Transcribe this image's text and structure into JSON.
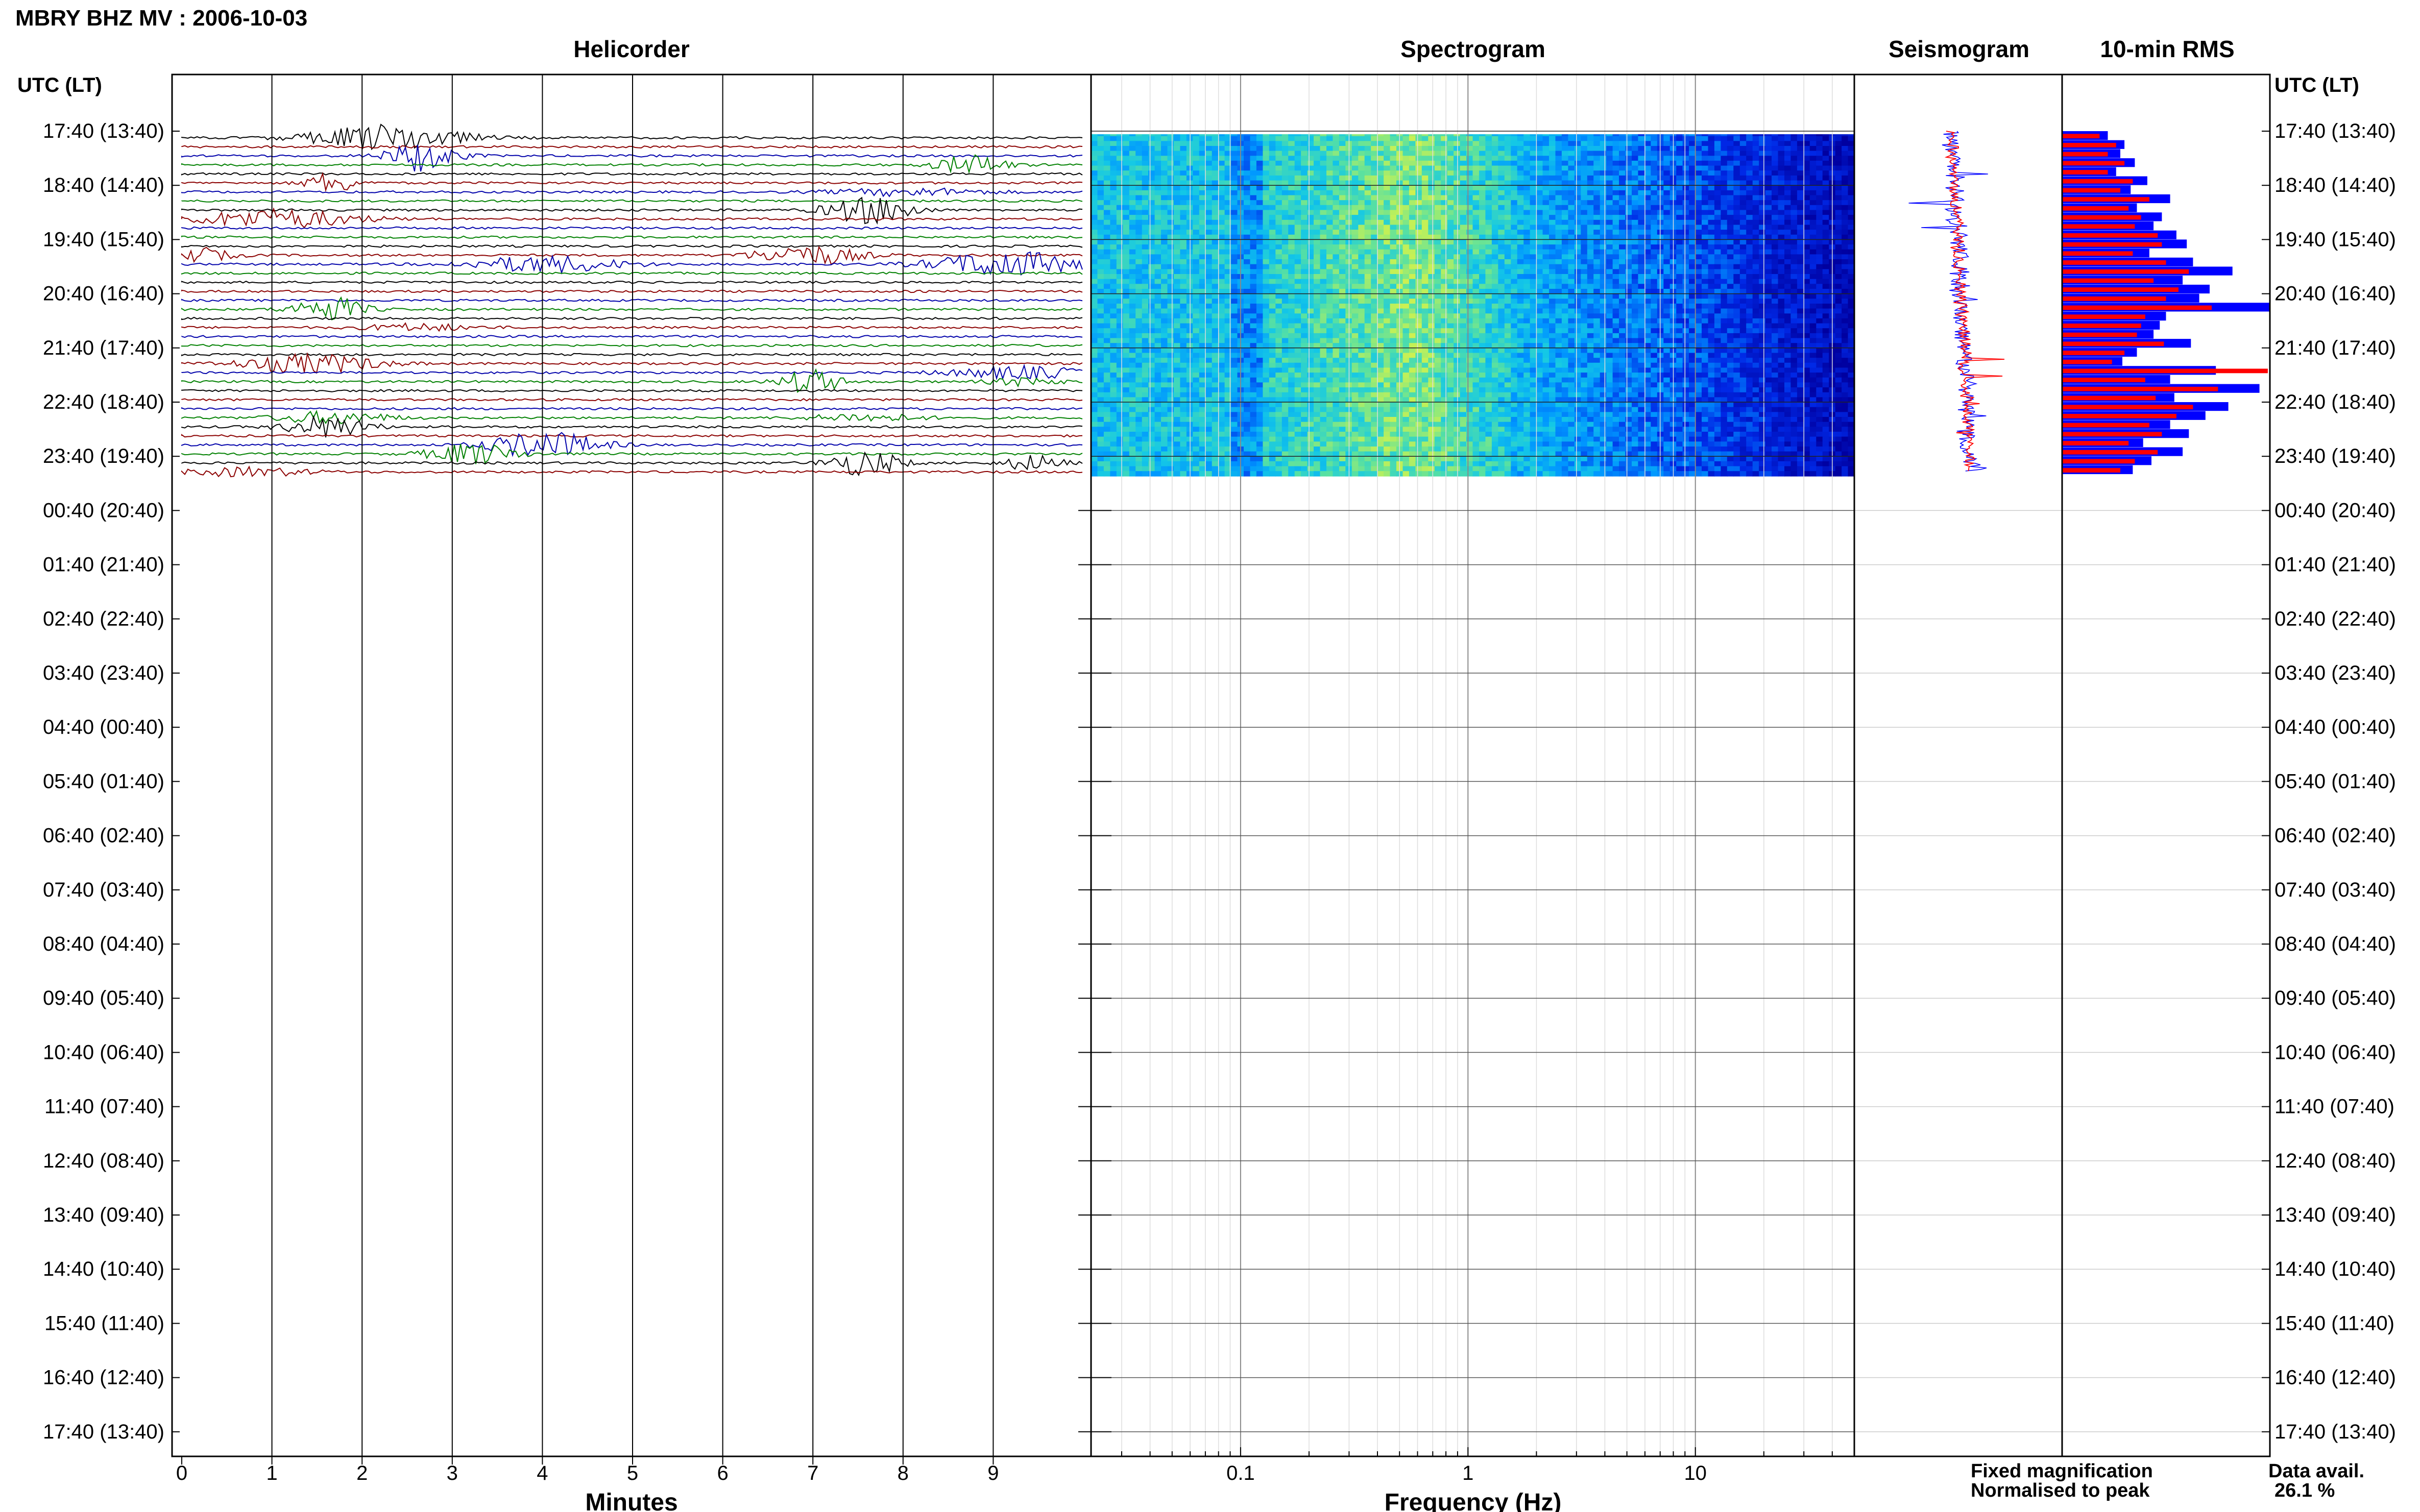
{
  "title": "MBRY BHZ MV : 2006-10-03",
  "panels": {
    "helicorder": "Helicorder",
    "spectrogram": "Spectrogram",
    "seismogram": "Seismogram",
    "rms": "10-min RMS"
  },
  "time_axis_header": "UTC (LT)",
  "time_labels": [
    "17:40 (13:40)",
    "18:40 (14:40)",
    "19:40 (15:40)",
    "20:40 (16:40)",
    "21:40 (17:40)",
    "22:40 (18:40)",
    "23:40 (19:40)",
    "00:40 (20:40)",
    "01:40 (21:40)",
    "02:40 (22:40)",
    "03:40 (23:40)",
    "04:40 (00:40)",
    "05:40 (01:40)",
    "06:40 (02:40)",
    "07:40 (03:40)",
    "08:40 (04:40)",
    "09:40 (05:40)",
    "10:40 (06:40)",
    "11:40 (07:40)",
    "12:40 (08:40)",
    "13:40 (09:40)",
    "14:40 (10:40)",
    "15:40 (11:40)",
    "16:40 (12:40)",
    "17:40 (13:40)"
  ],
  "minutes_ticks": [
    "0",
    "1",
    "2",
    "3",
    "4",
    "5",
    "6",
    "7",
    "8",
    "9"
  ],
  "minutes_label": "Minutes",
  "frequency_ticks": [
    "0.1",
    "1",
    "10"
  ],
  "frequency_label": "Frequency (Hz)",
  "legend": {
    "fixed": "Fixed magnification",
    "normalised": "Normalised to peak",
    "fixed_color": "#0000ff",
    "normalised_color": "#ff0000"
  },
  "data_avail_label": "Data avail.",
  "data_avail_value": "26.1 %",
  "trace_colors": [
    "#000000",
    "#8b0000",
    "#0000aa",
    "#008000"
  ],
  "chart_data": {
    "type": "bar",
    "hours_with_data": 6,
    "rows_per_hour": 6,
    "rms_fixed": [
      0.22,
      0.3,
      0.28,
      0.35,
      0.26,
      0.41,
      0.33,
      0.52,
      0.36,
      0.48,
      0.44,
      0.55,
      0.6,
      0.42,
      0.63,
      0.82,
      0.58,
      0.71,
      0.66,
      1.0,
      0.5,
      0.47,
      0.44,
      0.62,
      0.36,
      0.29,
      0.74,
      0.52,
      0.95,
      0.54,
      0.8,
      0.69,
      0.52,
      0.61,
      0.39,
      0.58,
      0.43,
      0.34
    ],
    "rms_normalised": [
      0.18,
      0.26,
      0.22,
      0.3,
      0.22,
      0.34,
      0.28,
      0.42,
      0.32,
      0.38,
      0.35,
      0.46,
      0.48,
      0.34,
      0.5,
      0.61,
      0.44,
      0.56,
      0.5,
      0.72,
      0.4,
      0.38,
      0.36,
      0.49,
      0.3,
      0.24,
      0.99,
      0.4,
      0.75,
      0.45,
      0.63,
      0.55,
      0.42,
      0.48,
      0.32,
      0.46,
      0.35,
      0.28
    ]
  }
}
